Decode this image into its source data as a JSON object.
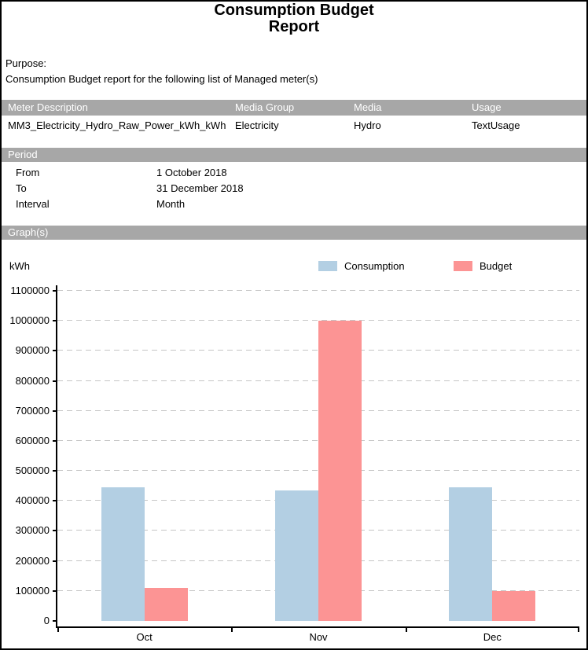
{
  "page": {
    "title_line1": "Consumption Budget",
    "title_line2": "Report",
    "purpose_label": "Purpose:",
    "purpose_text": "Consumption Budget report for the following list of Managed meter(s)"
  },
  "meter_table": {
    "headers": [
      "Meter Description",
      "Media Group",
      "Media",
      "Usage"
    ],
    "rows": [
      [
        "MM3_Electricity_Hydro_Raw_Power_kWh_kWh",
        "Electricity",
        "Hydro",
        "TextUsage"
      ]
    ]
  },
  "period": {
    "section_label": "Period",
    "fields": [
      {
        "label": "From",
        "value": "1 October 2018"
      },
      {
        "label": "To",
        "value": "31 December 2018"
      },
      {
        "label": "Interval",
        "value": "Month"
      }
    ]
  },
  "graphs": {
    "section_label": "Graph(s)",
    "unit_label": "kWh"
  },
  "chart_data": {
    "type": "bar",
    "categories": [
      "Oct",
      "Nov",
      "Dec"
    ],
    "series": [
      {
        "name": "Consumption",
        "color": "#b3cfe3",
        "values": [
          445000,
          435000,
          445000
        ]
      },
      {
        "name": "Budget",
        "color": "#fc9494",
        "values": [
          110000,
          1000000,
          100000
        ]
      }
    ],
    "ylabel": "kWh",
    "xlabel": "",
    "ylim": [
      0,
      1100000
    ],
    "ytick_step": 100000,
    "grid": "dashed-horizontal",
    "legend_position": "top"
  },
  "colors": {
    "section_bar": "#a7a7a7",
    "section_text": "#ffffff",
    "gridline": "#c6c6c6",
    "axis": "#000000"
  }
}
